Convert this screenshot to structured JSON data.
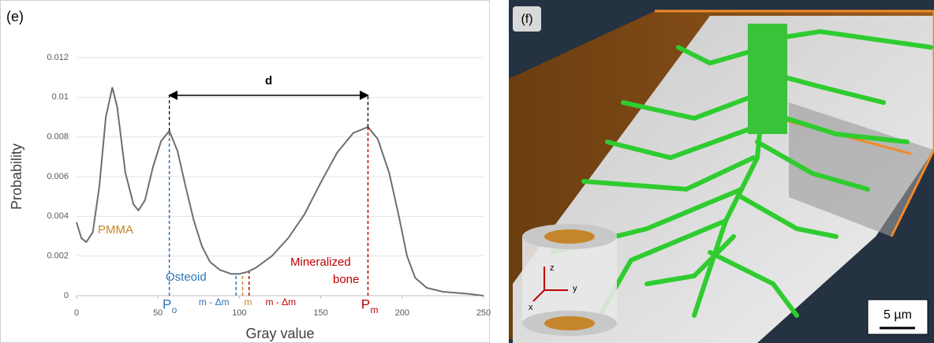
{
  "chart_data": {
    "type": "line",
    "panel_label": "(e)",
    "xlabel": "Gray value",
    "ylabel": "Probability",
    "x": [
      0,
      3,
      6,
      10,
      14,
      18,
      22,
      25,
      30,
      35,
      38,
      42,
      47,
      52,
      57,
      62,
      67,
      72,
      77,
      82,
      88,
      95,
      100,
      105,
      110,
      120,
      130,
      140,
      150,
      160,
      170,
      179,
      185,
      192,
      198,
      203,
      208,
      215,
      225,
      240,
      250
    ],
    "values": [
      0.0037,
      0.0029,
      0.0027,
      0.0032,
      0.0055,
      0.009,
      0.0105,
      0.0095,
      0.0062,
      0.0046,
      0.0043,
      0.0048,
      0.0065,
      0.0078,
      0.0083,
      0.0073,
      0.0055,
      0.0038,
      0.0025,
      0.0017,
      0.0013,
      0.0011,
      0.0011,
      0.0012,
      0.0014,
      0.002,
      0.0029,
      0.0041,
      0.0057,
      0.0072,
      0.0082,
      0.0085,
      0.0079,
      0.0062,
      0.004,
      0.002,
      0.0009,
      0.0004,
      0.0002,
      0.0001,
      0
    ],
    "color": "#6e6e6e",
    "xlim": [
      0,
      250
    ],
    "xticks": [
      0,
      50,
      100,
      150,
      200,
      250
    ],
    "ylim": [
      0,
      0.012
    ],
    "yticks": [
      0,
      0.002,
      0.004,
      0.006,
      0.008,
      0.01,
      0.012
    ],
    "grid": true,
    "markers": [
      {
        "x": 57,
        "y": 0.0083,
        "color": "#2e75b6",
        "label": "P",
        "sub": "o"
      },
      {
        "x": 179,
        "y": 0.0085,
        "color": "#c00000",
        "label": "P",
        "sub": "m"
      },
      {
        "x": 98,
        "y": 0.0011,
        "color": "#2e75b6",
        "label": "m - Δm"
      },
      {
        "x": 102,
        "y": 0.0011,
        "color": "#c5862b",
        "label": "m"
      },
      {
        "x": 106,
        "y": 0.0012,
        "color": "#c00000",
        "label": "m - Δm"
      }
    ],
    "d_arrow": {
      "label": "d",
      "from": 57,
      "to": 179,
      "y": 0.0101
    },
    "annotations": [
      {
        "text": "PMMA",
        "color": "#c5862b"
      },
      {
        "text": "Osteoid",
        "color": "#2e75b6"
      },
      {
        "text": "Mineralized",
        "color": "#c00000"
      },
      {
        "text": "bone",
        "color": "#c00000"
      }
    ]
  },
  "image_panel": {
    "panel_label": "(f)",
    "scale_bar": "5 µm",
    "axes": [
      "z",
      "y",
      "x"
    ]
  }
}
